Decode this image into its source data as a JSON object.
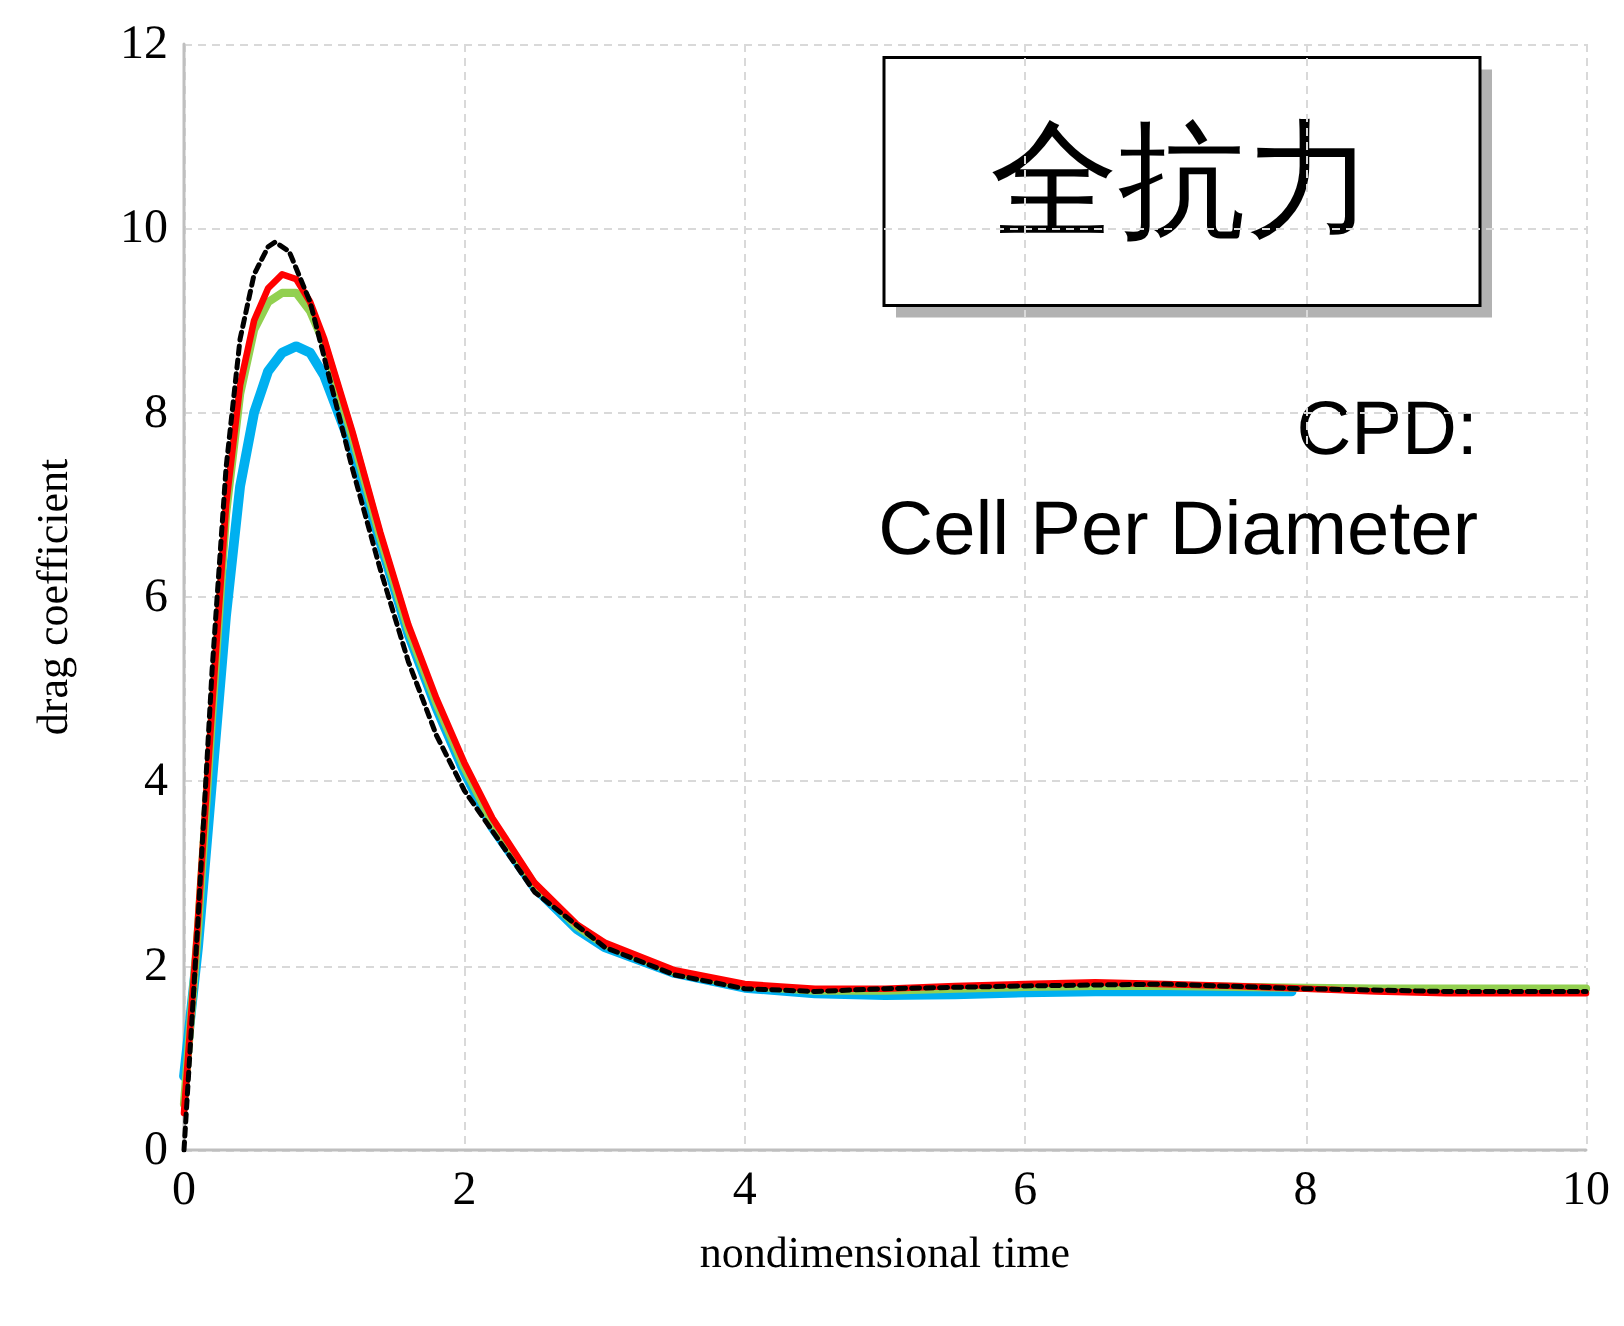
{
  "chart_data": {
    "type": "line",
    "xlabel": "nondimensional time",
    "ylabel": "drag coefficient",
    "xlim": [
      0,
      10
    ],
    "xticks": [
      0,
      2,
      4,
      6,
      8,
      10
    ],
    "ylim": [
      0,
      12
    ],
    "yticks": [
      0,
      2,
      4,
      6,
      8,
      10,
      12
    ],
    "grid": true,
    "marker": "none",
    "annotations": [
      "全抗力",
      "CPD:\nCell Per Diameter"
    ],
    "series": [
      {
        "color": "#00b0f0",
        "line_style": "solid",
        "x": [
          0,
          0.1,
          0.2,
          0.3,
          0.4,
          0.5,
          0.6,
          0.7,
          0.8,
          0.9,
          1.0,
          1.2,
          1.4,
          1.6,
          1.8,
          2.0,
          2.2,
          2.5,
          2.8,
          3.0,
          3.5,
          4.0,
          4.5,
          5,
          5.5,
          6,
          6.5,
          7,
          7.5,
          7.9
        ],
        "values": [
          0.8,
          2.2,
          4.0,
          5.8,
          7.2,
          8.0,
          8.45,
          8.65,
          8.72,
          8.65,
          8.4,
          7.6,
          6.6,
          5.6,
          4.8,
          4.1,
          3.5,
          2.85,
          2.4,
          2.2,
          1.92,
          1.76,
          1.7,
          1.68,
          1.69,
          1.71,
          1.72,
          1.72,
          1.72,
          1.72
        ]
      },
      {
        "color": "#92d050",
        "line_style": "solid",
        "x": [
          0,
          0.1,
          0.2,
          0.3,
          0.4,
          0.5,
          0.6,
          0.7,
          0.8,
          0.9,
          1.0,
          1.2,
          1.4,
          1.6,
          1.8,
          2.0,
          2.2,
          2.5,
          2.8,
          3.0,
          3.5,
          4.0,
          4.5,
          5,
          5.5,
          6,
          6.5,
          7,
          7.5,
          8,
          8.5,
          9,
          9.5,
          10
        ],
        "values": [
          0.5,
          2.4,
          4.7,
          6.9,
          8.2,
          8.9,
          9.2,
          9.3,
          9.3,
          9.1,
          8.75,
          7.75,
          6.65,
          5.65,
          4.85,
          4.15,
          3.55,
          2.88,
          2.43,
          2.23,
          1.93,
          1.78,
          1.73,
          1.73,
          1.75,
          1.77,
          1.78,
          1.78,
          1.77,
          1.76,
          1.75,
          1.75,
          1.75,
          1.75
        ]
      },
      {
        "color": "#ff0000",
        "line_style": "solid",
        "x": [
          0,
          0.1,
          0.2,
          0.3,
          0.4,
          0.5,
          0.6,
          0.7,
          0.8,
          0.9,
          1.0,
          1.2,
          1.4,
          1.6,
          1.8,
          2.0,
          2.2,
          2.5,
          2.8,
          3.0,
          3.5,
          4.0,
          4.5,
          5,
          5.5,
          6,
          6.5,
          7,
          7.5,
          8,
          8.5,
          9,
          9.5,
          10
        ],
        "values": [
          0.4,
          2.5,
          4.8,
          7.0,
          8.3,
          9.0,
          9.35,
          9.5,
          9.45,
          9.2,
          8.8,
          7.8,
          6.7,
          5.7,
          4.9,
          4.2,
          3.6,
          2.9,
          2.45,
          2.25,
          1.95,
          1.8,
          1.75,
          1.75,
          1.78,
          1.8,
          1.82,
          1.8,
          1.78,
          1.75,
          1.72,
          1.7,
          1.7,
          1.7
        ]
      },
      {
        "color": "#000000",
        "line_style": "dashed",
        "x": [
          0,
          0.1,
          0.2,
          0.3,
          0.4,
          0.5,
          0.6,
          0.65,
          0.75,
          0.9,
          1.0,
          1.2,
          1.4,
          1.6,
          1.8,
          2.0,
          2.5,
          3.0,
          3.5,
          4.0,
          4.5,
          5,
          6,
          7,
          8,
          9,
          10
        ],
        "values": [
          0,
          2.5,
          5.2,
          7.4,
          8.8,
          9.5,
          9.8,
          9.85,
          9.75,
          9.2,
          8.6,
          7.4,
          6.3,
          5.3,
          4.5,
          3.9,
          2.8,
          2.2,
          1.9,
          1.75,
          1.72,
          1.75,
          1.78,
          1.8,
          1.75,
          1.72,
          1.72
        ]
      }
    ]
  }
}
